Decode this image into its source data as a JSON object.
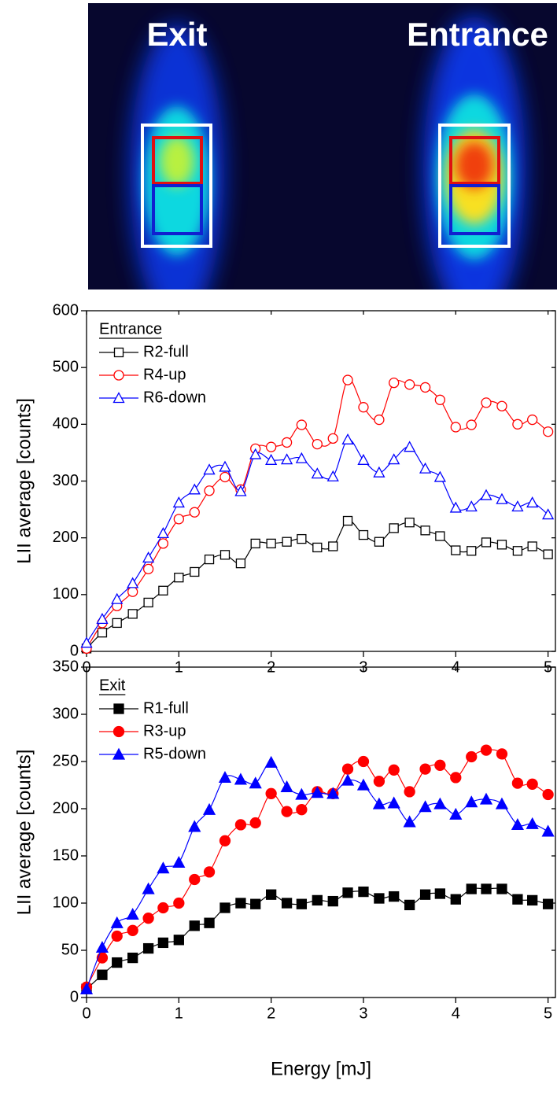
{
  "image": {
    "left_label": "Exit",
    "right_label": "Entrance"
  },
  "chart_data": [
    {
      "type": "line",
      "y_label": "LII average [counts]",
      "legend_title": "Entrance",
      "legend": "upper left",
      "x": [
        0,
        0.17,
        0.33,
        0.5,
        0.67,
        0.83,
        1,
        1.17,
        1.33,
        1.5,
        1.67,
        1.83,
        2,
        2.17,
        2.33,
        2.5,
        2.67,
        2.83,
        3,
        3.17,
        3.33,
        3.5,
        3.67,
        3.83,
        4,
        4.17,
        4.33,
        4.5,
        4.67,
        4.83,
        5
      ],
      "xlim": [
        0,
        5.08
      ],
      "xticks": [
        0,
        1,
        2,
        3,
        4,
        5
      ],
      "ylim": [
        0,
        600
      ],
      "yticks": [
        0,
        100,
        200,
        300,
        400,
        500,
        600
      ],
      "series": [
        {
          "name": "R2-full",
          "color": "#000000",
          "marker": "square",
          "filled": false,
          "values": [
            5,
            33,
            50,
            66,
            86,
            107,
            130,
            140,
            162,
            170,
            155,
            190,
            190,
            193,
            198,
            183,
            185,
            230,
            205,
            193,
            217,
            227,
            213,
            203,
            178,
            177,
            192,
            188,
            177,
            185,
            171
          ]
        },
        {
          "name": "R4-up",
          "color": "#ff0000",
          "marker": "circle",
          "filled": false,
          "values": [
            5,
            50,
            80,
            105,
            145,
            190,
            233,
            245,
            283,
            307,
            285,
            357,
            360,
            368,
            399,
            365,
            375,
            478,
            430,
            408,
            473,
            470,
            465,
            443,
            395,
            399,
            438,
            432,
            400,
            408,
            387
          ]
        },
        {
          "name": "R6-down",
          "color": "#0000ff",
          "marker": "triangle",
          "filled": false,
          "values": [
            15,
            57,
            92,
            120,
            165,
            208,
            262,
            285,
            320,
            325,
            282,
            347,
            337,
            338,
            340,
            313,
            308,
            373,
            337,
            315,
            338,
            360,
            322,
            307,
            253,
            255,
            275,
            268,
            255,
            262,
            241
          ]
        }
      ]
    },
    {
      "type": "line",
      "y_label": "LII average [counts]",
      "x_label": "Energy [mJ]",
      "legend_title": "Exit",
      "legend": "upper left",
      "x": [
        0,
        0.17,
        0.33,
        0.5,
        0.67,
        0.83,
        1,
        1.17,
        1.33,
        1.5,
        1.67,
        1.83,
        2,
        2.17,
        2.33,
        2.5,
        2.67,
        2.83,
        3,
        3.17,
        3.33,
        3.5,
        3.67,
        3.83,
        4,
        4.17,
        4.33,
        4.5,
        4.67,
        4.83,
        5
      ],
      "xlim": [
        0,
        5.08
      ],
      "xticks": [
        0,
        1,
        2,
        3,
        4,
        5
      ],
      "ylim": [
        0,
        350
      ],
      "yticks": [
        0,
        50,
        100,
        150,
        200,
        250,
        300,
        350
      ],
      "series": [
        {
          "name": "R1-full",
          "color": "#000000",
          "marker": "square",
          "filled": true,
          "values": [
            9,
            24,
            37,
            42,
            52,
            58,
            61,
            76,
            79,
            95,
            100,
            99,
            109,
            100,
            99,
            103,
            102,
            111,
            112,
            105,
            107,
            98,
            109,
            110,
            104,
            115,
            115,
            115,
            104,
            103,
            99
          ]
        },
        {
          "name": "R3-up",
          "color": "#ff0000",
          "marker": "circle",
          "filled": true,
          "values": [
            11,
            42,
            65,
            71,
            84,
            95,
            100,
            125,
            133,
            166,
            183,
            185,
            216,
            197,
            199,
            218,
            216,
            242,
            250,
            229,
            241,
            218,
            242,
            246,
            233,
            255,
            262,
            258,
            227,
            226,
            215
          ]
        },
        {
          "name": "R5-down",
          "color": "#0000ff",
          "marker": "triangle",
          "filled": true,
          "values": [
            9,
            53,
            79,
            88,
            115,
            137,
            143,
            181,
            199,
            233,
            231,
            227,
            249,
            223,
            215,
            217,
            216,
            230,
            225,
            205,
            206,
            186,
            202,
            205,
            194,
            207,
            210,
            205,
            183,
            184,
            176
          ]
        }
      ]
    }
  ]
}
